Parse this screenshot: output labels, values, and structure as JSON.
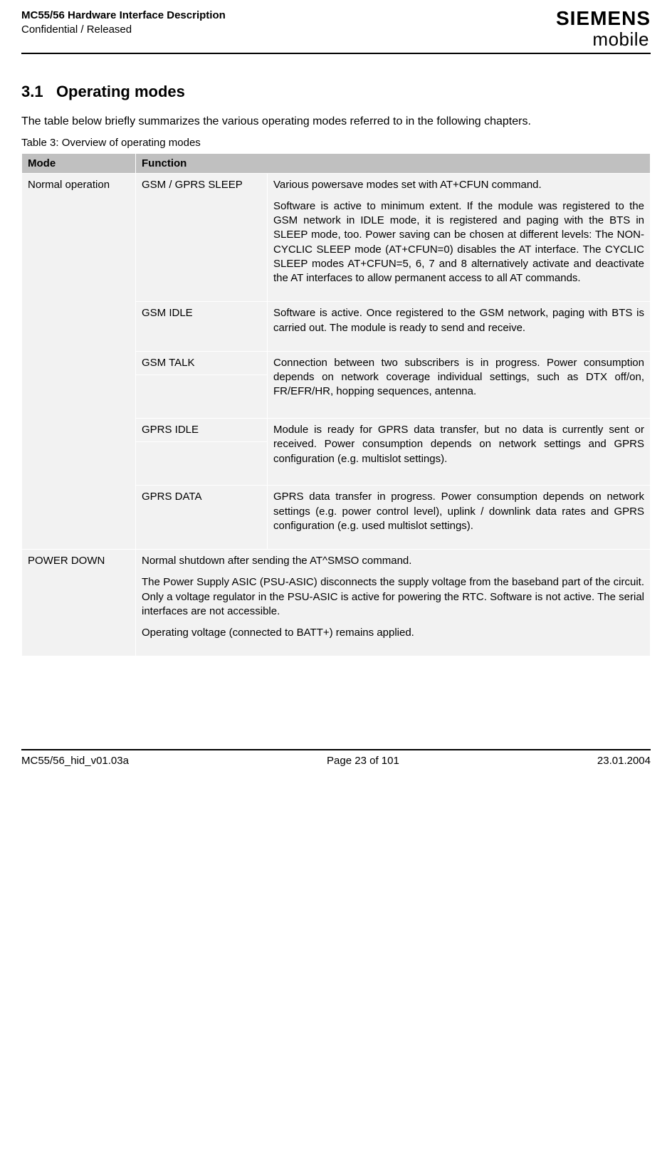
{
  "header": {
    "doc_title": "MC55/56 Hardware Interface Description",
    "classification": "Confidential / Released",
    "logo_top": "SIEMENS",
    "logo_bottom_m": "m",
    "logo_bottom_rest": "obile"
  },
  "section": {
    "number": "3.1",
    "title": "Operating modes",
    "intro": "The table below briefly summarizes the various operating modes referred to in the following chapters.",
    "table_caption": "Table 3: Overview of operating modes"
  },
  "table": {
    "col_mode": "Mode",
    "col_function": "Function",
    "rows": {
      "normal": {
        "mode": "Normal operation",
        "sleep": {
          "label": "GSM / GPRS SLEEP",
          "p1": "Various powersave modes set with AT+CFUN command.",
          "p2": "Software is active to minimum extent. If the module was registered to the GSM network in IDLE mode, it is registered and paging with the BTS in SLEEP mode, too. Power saving can be chosen at different levels: The NON-CYCLIC SLEEP mode (AT+CFUN=0) disables the AT interface. The CYCLIC SLEEP modes AT+CFUN=5, 6, 7 and 8 alternatively activate and deactivate the AT interfaces to allow permanent access to all AT commands."
        },
        "idle": {
          "label": "GSM IDLE",
          "p1": "Software is active. Once registered to the GSM network, paging with BTS is carried out. The module is ready to send and receive."
        },
        "talk": {
          "label": "GSM TALK",
          "p1": "Connection between two subscribers is in progress. Power consumption depends on network coverage individual settings, such as DTX off/on, FR/EFR/HR, hopping sequences, antenna."
        },
        "gprs_idle": {
          "label": "GPRS IDLE",
          "p1": "Module is ready for GPRS data transfer, but no data is currently sent or received. Power consumption depends on network settings and GPRS configuration (e.g. multislot settings)."
        },
        "gprs_data": {
          "label": "GPRS DATA",
          "p1": "GPRS data transfer in progress. Power consumption depends on network settings (e.g. power control level), uplink / downlink data rates and GPRS configuration (e.g. used multislot settings)."
        }
      },
      "power_down": {
        "mode": "POWER DOWN",
        "p1": "Normal shutdown after sending the AT^SMSO command.",
        "p2": "The Power Supply ASIC (PSU-ASIC) disconnects the supply voltage from the baseband part of the circuit. Only a voltage regulator in the PSU-ASIC is active for powering the RTC. Software is not active. The serial interfaces are not accessible.",
        "p3": "Operating voltage (connected to BATT+) remains applied."
      }
    }
  },
  "footer": {
    "left": "MC55/56_hid_v01.03a",
    "center": "Page 23 of 101",
    "right": "23.01.2004"
  }
}
